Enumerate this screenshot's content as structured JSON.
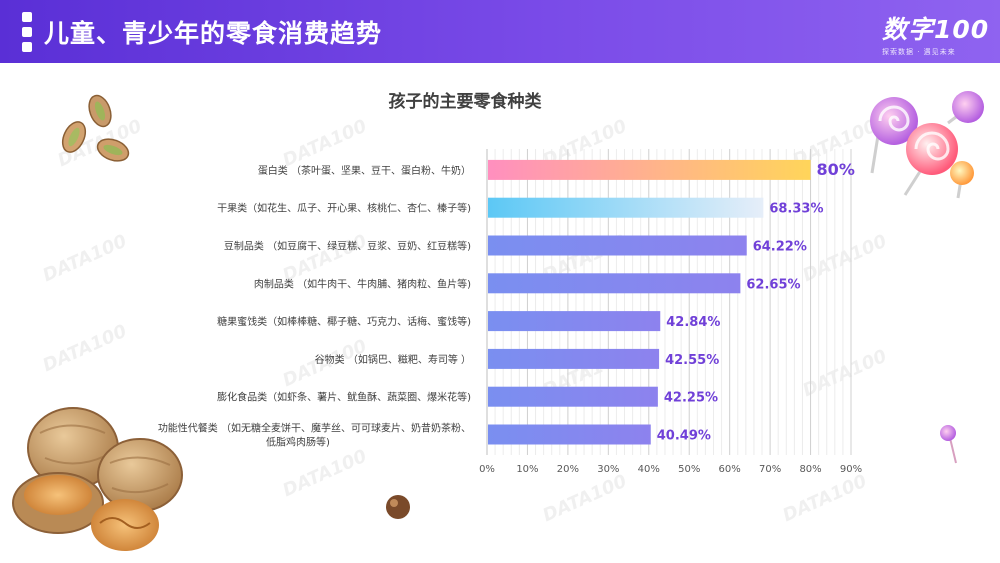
{
  "header": {
    "title": "儿童、青少年的零食消费趋势",
    "logo_main": "数字100",
    "logo_sub": "探索数据 · 遇见未来"
  },
  "watermark_text": "DATA100",
  "icons": [
    "pistachio-icon",
    "lollipop-icon",
    "walnut-icon",
    "hazelnut-icon"
  ],
  "colors": {
    "header": "#6a3be0",
    "bar_default": "#7b8ff0",
    "bar_first_start": "#ff8fbf",
    "bar_first_end": "#ffd55a",
    "bar_second_start": "#5cc8f5",
    "bar_second_end": "#e6eef9",
    "value_label": "#7040d8"
  },
  "chart_data": {
    "type": "bar",
    "orientation": "horizontal",
    "title": "孩子的主要零食种类",
    "xlabel": "",
    "ylabel": "",
    "xlim": [
      0,
      90
    ],
    "xticks": [
      0,
      10,
      20,
      30,
      40,
      50,
      60,
      70,
      80,
      90
    ],
    "tick_suffix": "%",
    "grid": true,
    "categories": [
      "蛋白类 （茶叶蛋、坚果、豆干、蛋白粉、牛奶）",
      "干果类（如花生、瓜子、开心果、核桃仁、杏仁、榛子等)",
      "豆制品类 （如豆腐干、绿豆糕、豆浆、豆奶、红豆糕等)",
      "肉制品类 （如牛肉干、牛肉脯、猪肉粒、鱼片等)",
      "糖果蜜饯类（如棒棒糖、椰子糖、巧克力、话梅、蜜饯等)",
      "谷物类 （如锅巴、糍粑、寿司等 ）",
      "膨化食品类（如虾条、薯片、鱿鱼酥、蔬菜圈、爆米花等)",
      [
        "功能性代餐类 （如无糖全麦饼干、魔芋丝、可可球麦片、奶昔奶茶粉、",
        "低脂鸡肉肠等)"
      ]
    ],
    "values": [
      80,
      68.33,
      64.22,
      62.65,
      42.84,
      42.55,
      42.25,
      40.49
    ],
    "value_labels": [
      "80%",
      "68.33%",
      "64.22%",
      "62.65%",
      "42.84%",
      "42.55%",
      "42.25%",
      "40.49%"
    ]
  }
}
